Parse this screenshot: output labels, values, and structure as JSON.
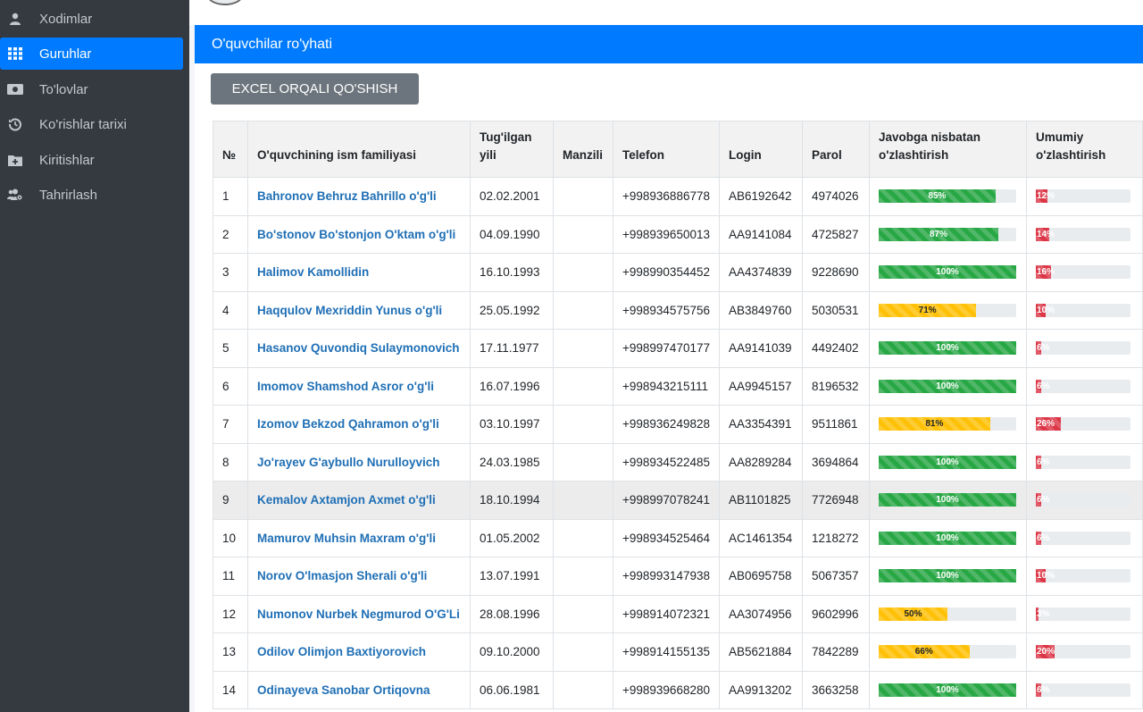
{
  "sidebar": {
    "items": [
      {
        "label": "Xodimlar",
        "icon": "user-tie-icon"
      },
      {
        "label": "Guruhlar",
        "icon": "grid-icon",
        "active": true
      },
      {
        "label": "To'lovlar",
        "icon": "money-icon"
      },
      {
        "label": "Ko'rishlar tarixi",
        "icon": "history-icon"
      },
      {
        "label": "Kiritishlar",
        "icon": "folder-plus-icon"
      },
      {
        "label": "Tahrirlash",
        "icon": "users-cog-icon"
      }
    ]
  },
  "card": {
    "title": "O'quvchilar ro'yhati",
    "excel_button": "EXCEL ORQALI QO'SHISH"
  },
  "table": {
    "headers": {
      "num": "№",
      "name": "O'quvchining ism familiyasi",
      "birth_1": "Tug'ilgan",
      "birth_2": "yili",
      "address": "Manzili",
      "phone": "Telefon",
      "login": "Login",
      "password": "Parol",
      "answer_1": "Javobga nisbatan",
      "answer_2": "o'zlashtirish",
      "total_1": "Umumiy",
      "total_2": "o'zlashtirish"
    },
    "rows": [
      {
        "num": "1",
        "name": "Bahronov Behruz Bahrillo o'g'li",
        "birth": "02.02.2001",
        "address": "",
        "phone": "+998936886778",
        "login": "AB6192642",
        "password": "4974026",
        "answer_pct": 85,
        "answer_label": "85%",
        "total_pct": 12,
        "total_label": "12%"
      },
      {
        "num": "2",
        "name": "Bo'stonov Bo'stonjon O'ktam o'g'li",
        "birth": "04.09.1990",
        "address": "",
        "phone": "+998939650013",
        "login": "AA9141084",
        "password": "4725827",
        "answer_pct": 87,
        "answer_label": "87%",
        "total_pct": 14,
        "total_label": "14%"
      },
      {
        "num": "3",
        "name": "Halimov Kamollidin",
        "birth": "16.10.1993",
        "address": "",
        "phone": "+998990354452",
        "login": "AA4374839",
        "password": "9228690",
        "answer_pct": 100,
        "answer_label": "100%",
        "total_pct": 16,
        "total_label": "16%"
      },
      {
        "num": "4",
        "name": "Haqqulov Mexriddin Yunus o'g'li",
        "birth": "25.05.1992",
        "address": "",
        "phone": "+998934575756",
        "login": "AB3849760",
        "password": "5030531",
        "answer_pct": 71,
        "answer_label": "71%",
        "total_pct": 10,
        "total_label": "10%"
      },
      {
        "num": "5",
        "name": "Hasanov Quvondiq Sulaymonovich",
        "birth": "17.11.1977",
        "address": "",
        "phone": "+998997470177",
        "login": "AA9141039",
        "password": "4492402",
        "answer_pct": 100,
        "answer_label": "100%",
        "total_pct": 6,
        "total_label": "6%"
      },
      {
        "num": "6",
        "name": "Imomov Shamshod Asror o'g'li",
        "birth": "16.07.1996",
        "address": "",
        "phone": "+998943215111",
        "login": "AA9945157",
        "password": "8196532",
        "answer_pct": 100,
        "answer_label": "100%",
        "total_pct": 6,
        "total_label": "6%"
      },
      {
        "num": "7",
        "name": "Izomov Bekzod Qahramon o'g'li",
        "birth": "03.10.1997",
        "address": "",
        "phone": "+998936249828",
        "login": "AA3354391",
        "password": "9511861",
        "answer_pct": 81,
        "answer_label": "81%",
        "total_pct": 26,
        "total_label": "26%"
      },
      {
        "num": "8",
        "name": "Jo'rayev G'aybullo Nurulloyvich",
        "birth": "24.03.1985",
        "address": "",
        "phone": "+998934522485",
        "login": "AA8289284",
        "password": "3694864",
        "answer_pct": 100,
        "answer_label": "100%",
        "total_pct": 6,
        "total_label": "6%"
      },
      {
        "num": "9",
        "name": "Kemalov Axtamjon Axmet o'g'li",
        "birth": "18.10.1994",
        "address": "",
        "phone": "+998997078241",
        "login": "AB1101825",
        "password": "7726948",
        "answer_pct": 100,
        "answer_label": "100%",
        "total_pct": 6,
        "total_label": "6%",
        "highlight": true
      },
      {
        "num": "10",
        "name": "Mamurov Muhsin Maxram o'g'li",
        "birth": "01.05.2002",
        "address": "",
        "phone": "+998934525464",
        "login": "AC1461354",
        "password": "1218272",
        "answer_pct": 100,
        "answer_label": "100%",
        "total_pct": 6,
        "total_label": "6%"
      },
      {
        "num": "11",
        "name": "Norov O'lmasjon Sherali o'g'li",
        "birth": "13.07.1991",
        "address": "",
        "phone": "+998993147938",
        "login": "AB0695758",
        "password": "5067357",
        "answer_pct": 100,
        "answer_label": "100%",
        "total_pct": 10,
        "total_label": "10%"
      },
      {
        "num": "12",
        "name": "Numonov Nurbek Negmurod O'G'Li",
        "birth": "28.08.1996",
        "address": "",
        "phone": "+998914072321",
        "login": "AA3074956",
        "password": "9602996",
        "answer_pct": 50,
        "answer_label": "50%",
        "total_pct": 3,
        "total_label": "3%"
      },
      {
        "num": "13",
        "name": "Odilov Olimjon Baxtiyorovich",
        "birth": "09.10.2000",
        "address": "",
        "phone": "+998914155135",
        "login": "AB5621884",
        "password": "7842289",
        "answer_pct": 66,
        "answer_label": "66%",
        "total_pct": 20,
        "total_label": "20%"
      },
      {
        "num": "14",
        "name": "Odinayeva Sanobar Ortiqovna",
        "birth": "06.06.1981",
        "address": "",
        "phone": "+998939668280",
        "login": "AA9913202",
        "password": "3663258",
        "answer_pct": 100,
        "answer_label": "100%",
        "total_pct": 6,
        "total_label": "6%"
      }
    ]
  },
  "colors": {
    "primary": "#007bff",
    "sidebar": "#343a40",
    "success": "#28a745",
    "warning": "#ffc107",
    "danger": "#dc3545"
  }
}
